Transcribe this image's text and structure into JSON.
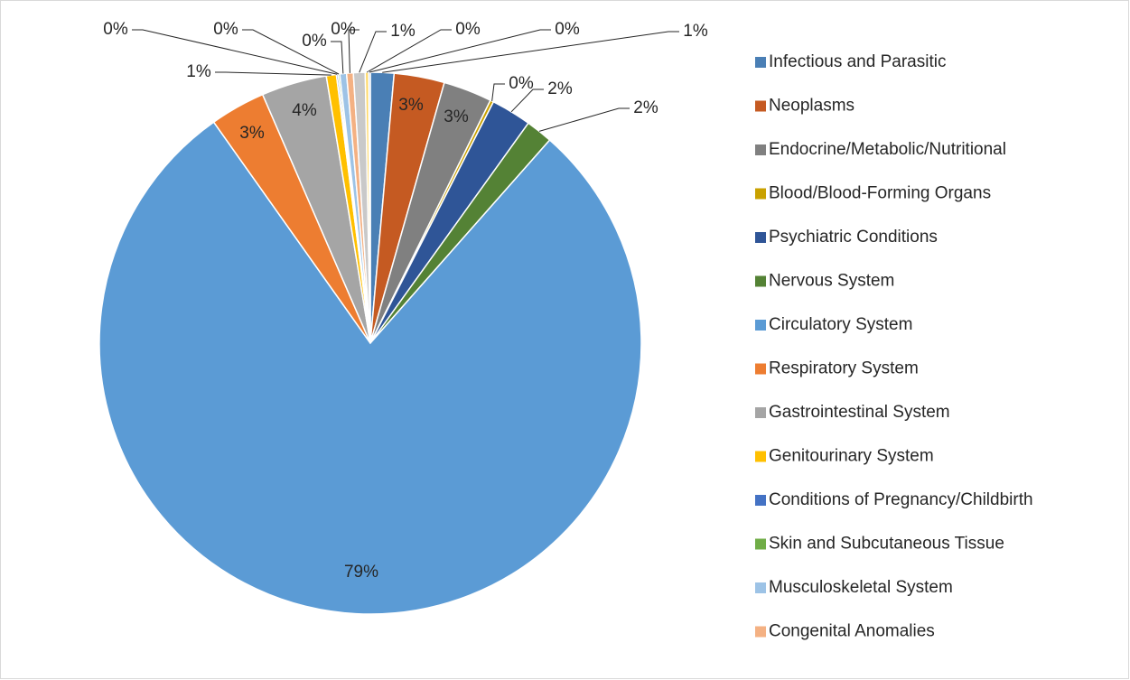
{
  "chart_data": {
    "type": "pie",
    "categories": [
      "Infectious and Parasitic",
      "Neoplasms",
      "Endocrine/Metabolic/Nutritional",
      "Blood/Blood-Forming Organs",
      "Psychiatric Conditions",
      "Nervous System",
      "Circulatory System",
      "Respiratory System",
      "Gastrointestinal System",
      "Genitourinary System",
      "Conditions of Pregnancy/Childbirth",
      "Skin and Subcutaneous Tissue",
      "Musculoskeletal System",
      "Congenital Anomalies",
      null,
      null,
      null
    ],
    "values": [
      1.4,
      3.0,
      2.9,
      0.2,
      2.4,
      1.6,
      78.6,
      3.3,
      3.9,
      0.6,
      0.1,
      0.1,
      0.4,
      0.4,
      0.7,
      0.2,
      0.1
    ],
    "value_labels": [
      "1%",
      "3%",
      "3%",
      "0%",
      "2%",
      "2%",
      "79%",
      "3%",
      "4%",
      "1%",
      "0%",
      "0%",
      "0%",
      "0%",
      "1%",
      "0%",
      "0%"
    ],
    "colors": [
      "#4a7fb5",
      "#c55a22",
      "#808080",
      "#c9a100",
      "#2f5597",
      "#548235",
      "#5b9bd5",
      "#ed7d31",
      "#a5a5a5",
      "#ffc000",
      "#4472c4",
      "#70ad47",
      "#9dc3e6",
      "#f4b183",
      "#c9c9c9",
      "#ffd966",
      "#8faadc"
    ],
    "legend": "right"
  }
}
